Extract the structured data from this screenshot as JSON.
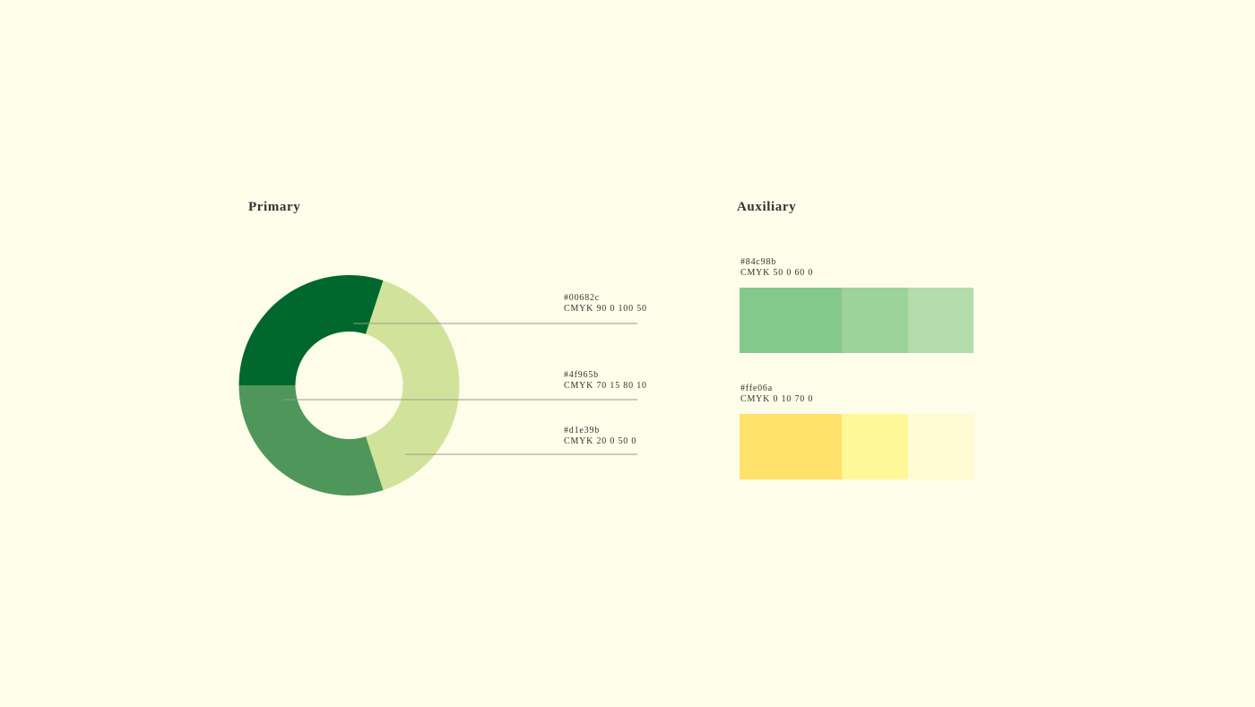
{
  "primary": {
    "title": "Primary",
    "segments": [
      {
        "hex": "#00682c",
        "cmyk": "CMYK 90 0 100 50",
        "color": "#00682c",
        "fraction": 0.3
      },
      {
        "hex": "#4f965b",
        "cmyk": "CMYK 70 15 80 10",
        "color": "#4f965b",
        "fraction": 0.3
      },
      {
        "hex": "#d1e39b",
        "cmyk": "CMYK 20 0 50 0",
        "color": "#d1e39b",
        "fraction": 0.4
      }
    ]
  },
  "auxiliary": {
    "title": "Auxiliary",
    "palettes": [
      {
        "hex": "#84c98b",
        "cmyk": "CMYK 50 0 60 0",
        "shades": [
          "#84c98b",
          "#9dd39b",
          "#b4dcac"
        ]
      },
      {
        "hex": "#ffe06a",
        "cmyk": "CMYK 0 10 70 0",
        "shades": [
          "#ffe06a",
          "#fff899",
          "#fffcd4"
        ]
      }
    ]
  },
  "colors": {
    "background": "#fefde9",
    "leader_line": "#9a9a8e",
    "text": "#333333"
  }
}
